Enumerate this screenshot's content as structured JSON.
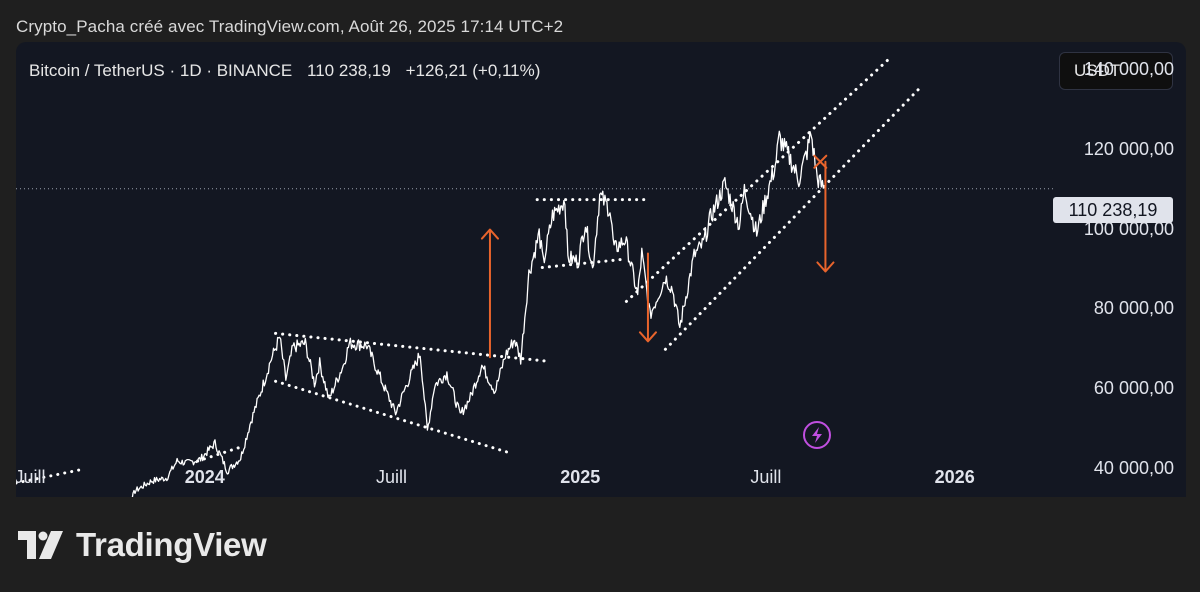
{
  "caption": "Crypto_Pacha créé avec TradingView.com, Août 26, 2025 17:14 UTC+2",
  "header": {
    "symbol": "Bitcoin / TetherUS · 1D · BINANCE",
    "last": "110 238,19",
    "change": "+126,21 (+0,11%)"
  },
  "currency_button": "USDT",
  "price_tag": "110 238,19",
  "brand": {
    "wordmark": "TradingView"
  },
  "colors": {
    "panel_bg": "#131722",
    "price": "#ffffff",
    "trendlines": "#ffffff",
    "arrows": "#e8642c",
    "lightning": "#c04fe0"
  },
  "icons": [
    "lightning-icon",
    "tradingview-logo-icon"
  ],
  "chart_data": {
    "type": "line",
    "title": "Bitcoin / TetherUS · 1D · BINANCE",
    "xlabel": "",
    "ylabel": "",
    "ylim": [
      33000,
      147000
    ],
    "xlim": [
      "2023-07-01",
      "2026-03-31"
    ],
    "grid": false,
    "current_price": 110238.19,
    "y_ticks": [
      {
        "value": 140000,
        "label": "140 000,00"
      },
      {
        "value": 120000,
        "label": "120 000,00"
      },
      {
        "value": 100000,
        "label": "100 000,00"
      },
      {
        "value": 80000,
        "label": "80 000,00"
      },
      {
        "value": 60000,
        "label": "60 000,00"
      },
      {
        "value": 40000,
        "label": "40 000,00"
      }
    ],
    "x_ticks": [
      {
        "date": "2023-07-01",
        "label": "Juill",
        "bold": false
      },
      {
        "date": "2024-01-01",
        "label": "2024",
        "bold": true
      },
      {
        "date": "2024-07-01",
        "label": "Juill",
        "bold": false
      },
      {
        "date": "2025-01-01",
        "label": "2025",
        "bold": true
      },
      {
        "date": "2025-07-01",
        "label": "Juill",
        "bold": false
      },
      {
        "date": "2026-01-01",
        "label": "2026",
        "bold": true
      }
    ],
    "series": [
      {
        "points": [
          [
            "2023-10-01",
            27000
          ],
          [
            "2023-10-15",
            28500
          ],
          [
            "2023-10-25",
            34500
          ],
          [
            "2023-11-10",
            37000
          ],
          [
            "2023-11-25",
            37800
          ],
          [
            "2023-12-05",
            42000
          ],
          [
            "2023-12-15",
            41500
          ],
          [
            "2023-12-28",
            42500
          ],
          [
            "2024-01-11",
            46500
          ],
          [
            "2024-01-23",
            39500
          ],
          [
            "2024-02-05",
            42800
          ],
          [
            "2024-02-15",
            52000
          ],
          [
            "2024-02-28",
            62000
          ],
          [
            "2024-03-05",
            67000
          ],
          [
            "2024-03-14",
            73000
          ],
          [
            "2024-03-20",
            62500
          ],
          [
            "2024-03-27",
            70500
          ],
          [
            "2024-04-08",
            71500
          ],
          [
            "2024-04-17",
            61500
          ],
          [
            "2024-04-22",
            66500
          ],
          [
            "2024-05-01",
            57500
          ],
          [
            "2024-05-15",
            66000
          ],
          [
            "2024-05-21",
            71500
          ],
          [
            "2024-06-07",
            71000
          ],
          [
            "2024-06-24",
            60500
          ],
          [
            "2024-07-05",
            54000
          ],
          [
            "2024-07-14",
            60000
          ],
          [
            "2024-07-29",
            69000
          ],
          [
            "2024-08-05",
            49500
          ],
          [
            "2024-08-12",
            61000
          ],
          [
            "2024-08-24",
            64000
          ],
          [
            "2024-09-06",
            53500
          ],
          [
            "2024-09-16",
            58000
          ],
          [
            "2024-09-27",
            66000
          ],
          [
            "2024-10-10",
            59500
          ],
          [
            "2024-10-20",
            68500
          ],
          [
            "2024-10-29",
            72500
          ],
          [
            "2024-11-04",
            67500
          ],
          [
            "2024-11-12",
            89000
          ],
          [
            "2024-11-22",
            99000
          ],
          [
            "2024-11-26",
            91500
          ],
          [
            "2024-12-05",
            103500
          ],
          [
            "2024-12-17",
            107500
          ],
          [
            "2024-12-20",
            93000
          ],
          [
            "2024-12-30",
            92000
          ],
          [
            "2025-01-06",
            102000
          ],
          [
            "2025-01-13",
            90000
          ],
          [
            "2025-01-20",
            108500
          ],
          [
            "2025-01-30",
            105000
          ],
          [
            "2025-02-03",
            95000
          ],
          [
            "2025-02-14",
            97500
          ],
          [
            "2025-02-26",
            83500
          ],
          [
            "2025-03-02",
            94000
          ],
          [
            "2025-03-10",
            78500
          ],
          [
            "2025-03-25",
            88000
          ],
          [
            "2025-04-01",
            85000
          ],
          [
            "2025-04-08",
            75500
          ],
          [
            "2025-04-22",
            93500
          ],
          [
            "2025-05-01",
            96500
          ],
          [
            "2025-05-08",
            103000
          ],
          [
            "2025-05-22",
            111500
          ],
          [
            "2025-06-05",
            101000
          ],
          [
            "2025-06-10",
            110000
          ],
          [
            "2025-06-22",
            99000
          ],
          [
            "2025-06-30",
            107000
          ],
          [
            "2025-07-10",
            116000
          ],
          [
            "2025-07-14",
            123000
          ],
          [
            "2025-07-25",
            117500
          ],
          [
            "2025-08-02",
            112500
          ],
          [
            "2025-08-10",
            119500
          ],
          [
            "2025-08-14",
            124000
          ],
          [
            "2025-08-20",
            113000
          ],
          [
            "2025-08-26",
            110238
          ]
        ]
      }
    ],
    "trendlines": [
      {
        "style": "dotted",
        "from": [
          "2023-07-01",
          36500
        ],
        "to": [
          "2023-09-05",
          40000
        ]
      },
      {
        "style": "dotted",
        "from": [
          "2023-12-25",
          42000
        ],
        "to": [
          "2024-02-05",
          45500
        ]
      },
      {
        "style": "dotted",
        "from": [
          "2024-03-10",
          74000
        ],
        "to": [
          "2024-12-01",
          67000
        ]
      },
      {
        "style": "dotted",
        "from": [
          "2024-03-10",
          62000
        ],
        "to": [
          "2024-10-25",
          44000
        ]
      },
      {
        "style": "dotted",
        "from": [
          "2024-11-20",
          107500
        ],
        "to": [
          "2025-03-10",
          107500
        ]
      },
      {
        "style": "dotted",
        "from": [
          "2024-11-25",
          90500
        ],
        "to": [
          "2025-02-10",
          92500
        ]
      },
      {
        "style": "dotted",
        "from": [
          "2025-02-15",
          82000
        ],
        "to": [
          "2025-10-30",
          143000
        ]
      },
      {
        "style": "dotted",
        "from": [
          "2025-03-25",
          70000
        ],
        "to": [
          "2025-11-30",
          136000
        ]
      }
    ],
    "arrows": [
      {
        "from": [
          "2024-10-05",
          68000
        ],
        "to": [
          "2024-10-05",
          100000
        ]
      },
      {
        "from": [
          "2025-03-08",
          94000
        ],
        "to": [
          "2025-03-08",
          72000
        ]
      },
      {
        "from": [
          "2025-08-28",
          117000
        ],
        "to": [
          "2025-08-28",
          89500
        ]
      }
    ],
    "markers": [
      {
        "type": "x",
        "at": [
          "2025-08-23",
          117000
        ]
      }
    ]
  }
}
